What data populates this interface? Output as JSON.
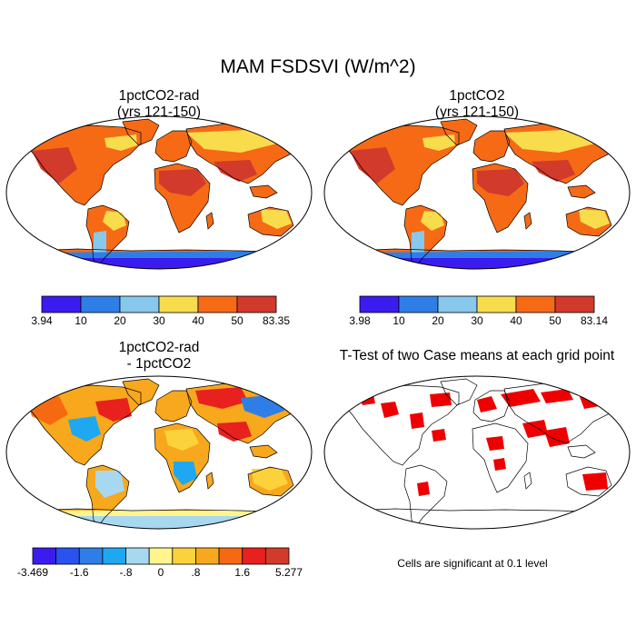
{
  "title": "MAM FSDSVI (W/m^2)",
  "panels": [
    {
      "id": "p1",
      "title_line1": "1pctCO2-rad",
      "title_line2": "(yrs 121-150)",
      "colorbar": {
        "labels": [
          "3.94",
          "10",
          "20",
          "30",
          "40",
          "50",
          "83.35"
        ],
        "colors": [
          "#3b1cf0",
          "#2f7ee8",
          "#87c8ec",
          "#f8dc4c",
          "#f66a16",
          "#d23a2c"
        ]
      }
    },
    {
      "id": "p2",
      "title_line1": "1pctCO2",
      "title_line2": "(yrs 121-150)",
      "colorbar": {
        "labels": [
          "3.98",
          "10",
          "20",
          "30",
          "40",
          "50",
          "83.14"
        ],
        "colors": [
          "#3b1cf0",
          "#2f7ee8",
          "#87c8ec",
          "#f8dc4c",
          "#f66a16",
          "#d23a2c"
        ]
      }
    },
    {
      "id": "p3",
      "title_line1": "1pctCO2-rad",
      "title_line2": "- 1pctCO2",
      "colorbar": {
        "labels": [
          "-3.469",
          "-1.6",
          "-.8",
          "0",
          ".8",
          "1.6",
          "5.277"
        ],
        "colors": [
          "#3b1cf0",
          "#2a52ee",
          "#2f7ee8",
          "#1fa8f2",
          "#a7d8f0",
          "#fff58c",
          "#fbd23c",
          "#f8a81c",
          "#f56a10",
          "#e8201e",
          "#d23a2c"
        ]
      }
    },
    {
      "id": "p4",
      "title": "T-Test of two Case means at each grid point",
      "note": "Cells are significant at 0.1 level",
      "significance_color": "#ee0000"
    }
  ]
}
